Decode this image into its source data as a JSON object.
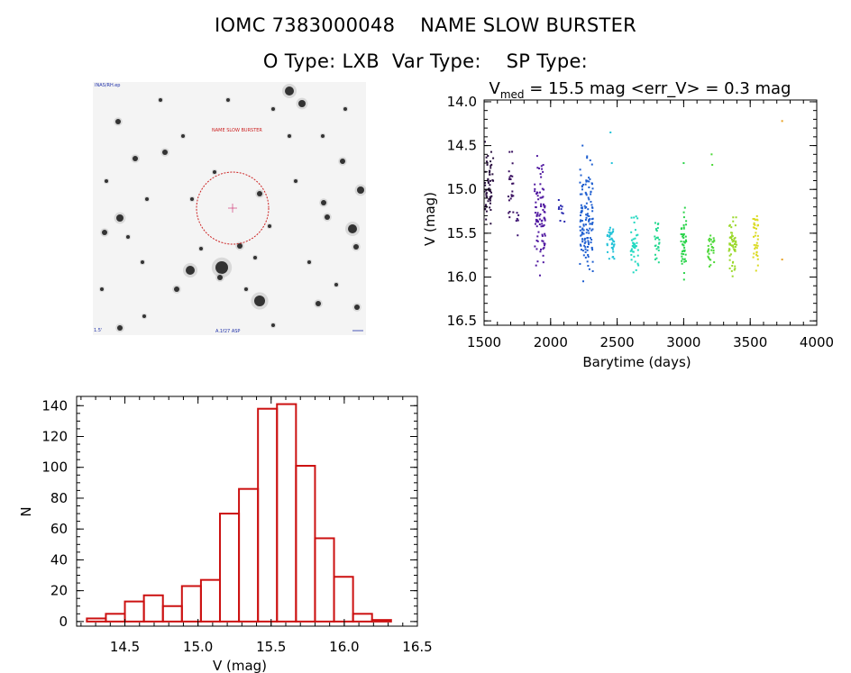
{
  "header": {
    "line1": "IOMC 7383000048    NAME SLOW BURSTER",
    "line2": "O Type: LXB  Var Type:    SP Type:"
  },
  "thumbnail": {
    "object_label": "NAME SLOW BURSTER",
    "corner_label": "INAS/RH.ep",
    "bottom_label": "A.1f27 ASP",
    "left_label": "1.5'"
  },
  "chart_data": [
    {
      "type": "scatter",
      "title": "V_med = 15.5 mag <err_V> = 0.3 mag",
      "title_parts": {
        "v": "V",
        "sub": "med",
        "rest": " = 15.5 mag <err_V> = 0.3 mag"
      },
      "xlabel": "Barytime (days)",
      "ylabel": "V (mag)",
      "xlim": [
        1500,
        4000
      ],
      "ylim": [
        16.55,
        13.98
      ],
      "y_inverted": true,
      "xticks": [
        1500,
        2000,
        2500,
        3000,
        3500,
        4000
      ],
      "yticks": [
        14.0,
        14.5,
        15.0,
        15.5,
        16.0,
        16.5
      ],
      "y_tick_labels": [
        "14.0",
        "14.5",
        "15.0",
        "15.5",
        "16.0",
        "16.5"
      ],
      "color_by_time": true,
      "clusters": [
        {
          "x": [
            1500,
            1570
          ],
          "y": [
            14.3,
            15.55
          ],
          "n": 60,
          "color": "#2a1040"
        },
        {
          "x": [
            1680,
            1720
          ],
          "y": [
            14.4,
            15.5
          ],
          "n": 22,
          "color": "#3a1060"
        },
        {
          "x": [
            1740,
            1760
          ],
          "y": [
            15.1,
            15.6
          ],
          "n": 6,
          "color": "#3a1070"
        },
        {
          "x": [
            1880,
            1960
          ],
          "y": [
            14.45,
            16.15
          ],
          "n": 90,
          "color": "#5018a0"
        },
        {
          "x": [
            2060,
            2110
          ],
          "y": [
            14.8,
            15.8
          ],
          "n": 10,
          "color": "#2a2ab0"
        },
        {
          "x": [
            2220,
            2320
          ],
          "y": [
            14.5,
            16.25
          ],
          "n": 130,
          "color": "#1f5fd0"
        },
        {
          "x": [
            2420,
            2480
          ],
          "y": [
            15.3,
            15.9
          ],
          "n": 35,
          "color": "#22c2d8"
        },
        {
          "x": [
            2600,
            2660
          ],
          "y": [
            15.2,
            16.1
          ],
          "n": 40,
          "color": "#20d8c0"
        },
        {
          "x": [
            2780,
            2820
          ],
          "y": [
            15.3,
            15.9
          ],
          "n": 25,
          "color": "#24d890"
        },
        {
          "x": [
            2980,
            3020
          ],
          "y": [
            15.05,
            16.15
          ],
          "n": 45,
          "color": "#2ad44a"
        },
        {
          "x": [
            3180,
            3230
          ],
          "y": [
            15.4,
            15.95
          ],
          "n": 30,
          "color": "#4cd838"
        },
        {
          "x": [
            3340,
            3400
          ],
          "y": [
            15.2,
            16.05
          ],
          "n": 55,
          "color": "#9ad82a"
        },
        {
          "x": [
            3520,
            3560
          ],
          "y": [
            15.0,
            16.15
          ],
          "n": 35,
          "color": "#dada20"
        }
      ],
      "points": [
        {
          "x": 2450,
          "y": 14.35,
          "color": "#22c2d8"
        },
        {
          "x": 2460,
          "y": 14.7,
          "color": "#22c2d8"
        },
        {
          "x": 3000,
          "y": 14.7,
          "color": "#2ad44a"
        },
        {
          "x": 3210,
          "y": 14.6,
          "color": "#4cd838"
        },
        {
          "x": 3215,
          "y": 14.72,
          "color": "#4cd838"
        },
        {
          "x": 3740,
          "y": 14.22,
          "color": "#e8a020"
        },
        {
          "x": 3740,
          "y": 15.8,
          "color": "#e8a020"
        },
        {
          "x": 2240,
          "y": 14.5,
          "color": "#1f5fd0"
        }
      ]
    },
    {
      "type": "bar",
      "subtype": "histogram",
      "xlabel": "V (mag)",
      "ylabel": "N",
      "xlim": [
        14.17,
        16.5
      ],
      "ylim": [
        -3,
        146
      ],
      "xticks": [
        14.5,
        15.0,
        15.5,
        16.0,
        16.5
      ],
      "x_tick_labels": [
        "14.5",
        "15.0",
        "15.5",
        "16.0",
        "16.5"
      ],
      "yticks": [
        0,
        20,
        40,
        60,
        80,
        100,
        120,
        140
      ],
      "bin_edges": [
        14.24,
        14.37,
        14.5,
        14.63,
        14.76,
        14.89,
        15.02,
        15.15,
        15.28,
        15.41,
        15.54,
        15.67,
        15.8,
        15.93,
        16.06,
        16.19,
        16.32
      ],
      "values": [
        2,
        5,
        13,
        17,
        10,
        23,
        27,
        70,
        86,
        138,
        141,
        101,
        54,
        29,
        5,
        1
      ],
      "color": "#cc1111"
    }
  ]
}
